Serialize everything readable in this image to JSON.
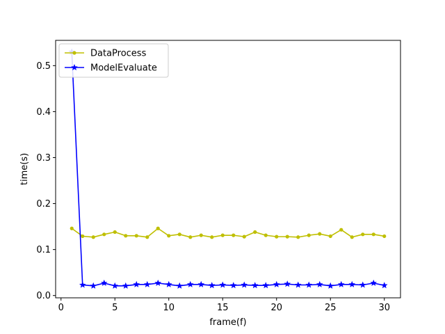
{
  "chart_data": {
    "type": "line",
    "title": "",
    "xlabel": "frame(f)",
    "ylabel": "time(s)",
    "xlim": [
      -0.5,
      31.5
    ],
    "ylim": [
      -0.005,
      0.555
    ],
    "xticks": [
      0,
      5,
      10,
      15,
      20,
      25,
      30
    ],
    "xtick_labels": [
      "0",
      "5",
      "10",
      "15",
      "20",
      "25",
      "30"
    ],
    "yticks": [
      0.0,
      0.1,
      0.2,
      0.3,
      0.4,
      0.5
    ],
    "ytick_labels": [
      "0.0",
      "0.1",
      "0.2",
      "0.3",
      "0.4",
      "0.5"
    ],
    "grid": false,
    "legend_position": "top-left",
    "x": [
      1,
      2,
      3,
      4,
      5,
      6,
      7,
      8,
      9,
      10,
      11,
      12,
      13,
      14,
      15,
      16,
      17,
      18,
      19,
      20,
      21,
      22,
      23,
      24,
      25,
      26,
      27,
      28,
      29,
      30
    ],
    "series": [
      {
        "name": "DataProcess",
        "color": "#bfbf00",
        "marker": "circle",
        "values": [
          0.146,
          0.129,
          0.127,
          0.133,
          0.138,
          0.13,
          0.13,
          0.127,
          0.146,
          0.13,
          0.133,
          0.127,
          0.131,
          0.127,
          0.131,
          0.131,
          0.128,
          0.138,
          0.131,
          0.128,
          0.128,
          0.127,
          0.131,
          0.134,
          0.129,
          0.143,
          0.127,
          0.133,
          0.133,
          0.129
        ]
      },
      {
        "name": "ModelEvaluate",
        "color": "#0000ff",
        "marker": "star",
        "values": [
          0.53,
          0.023,
          0.021,
          0.027,
          0.021,
          0.021,
          0.024,
          0.024,
          0.027,
          0.024,
          0.021,
          0.024,
          0.024,
          0.022,
          0.023,
          0.022,
          0.023,
          0.022,
          0.022,
          0.024,
          0.025,
          0.023,
          0.023,
          0.024,
          0.021,
          0.024,
          0.024,
          0.023,
          0.027,
          0.022
        ]
      }
    ]
  }
}
